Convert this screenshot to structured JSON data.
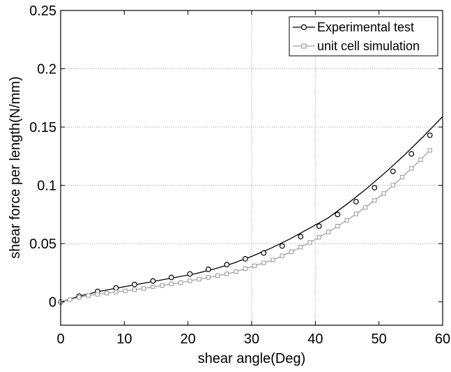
{
  "chart_data": {
    "type": "line",
    "xlabel": "shear angle(Deg)",
    "ylabel": "shear force per length(N/mm)",
    "xlim": [
      0,
      60
    ],
    "ylim": [
      -0.02,
      0.25
    ],
    "x_ticks": [
      "0",
      "10",
      "20",
      "30",
      "40",
      "50",
      "60"
    ],
    "y_ticks": [
      "0",
      "0.05",
      "0.1",
      "0.15",
      "0.2",
      "0.25"
    ],
    "grid": "dotted at x = 30, 40 and y = 0.05, 0.1, 0.15, 0.2",
    "legend_position": "top-right",
    "series": [
      {
        "name": "Experimental test",
        "color": "#000000",
        "marker": "circle",
        "line_x": [
          0,
          3,
          6,
          9,
          12,
          15,
          18,
          21,
          24,
          27,
          30,
          33,
          36,
          39,
          42,
          45,
          48,
          51,
          54,
          57,
          60
        ],
        "line_y": [
          0,
          0.005,
          0.009,
          0.012,
          0.015,
          0.018,
          0.021,
          0.024,
          0.028,
          0.033,
          0.039,
          0.046,
          0.054,
          0.063,
          0.072,
          0.084,
          0.097,
          0.111,
          0.126,
          0.142,
          0.159
        ],
        "markers_x": [
          0,
          2.9,
          5.8,
          8.7,
          11.6,
          14.5,
          17.4,
          20.3,
          23.2,
          26.1,
          29.0,
          31.9,
          34.8,
          37.7,
          40.6,
          43.5,
          46.4,
          49.3,
          52.2,
          55.1,
          58.0
        ],
        "markers_y": [
          0,
          0.005,
          0.009,
          0.012,
          0.015,
          0.018,
          0.021,
          0.024,
          0.028,
          0.032,
          0.037,
          0.042,
          0.048,
          0.056,
          0.065,
          0.075,
          0.086,
          0.098,
          0.112,
          0.127,
          0.143
        ]
      },
      {
        "name": "unit cell simulation",
        "color": "#a0a0a0",
        "marker": "square",
        "x": [
          0,
          1.45,
          2.9,
          4.35,
          5.8,
          7.25,
          8.7,
          10.15,
          11.6,
          13.05,
          14.5,
          15.95,
          17.4,
          18.85,
          20.3,
          21.75,
          23.2,
          24.65,
          26.1,
          27.55,
          29.0,
          30.45,
          31.9,
          33.35,
          34.8,
          36.25,
          37.7,
          39.15,
          40.6,
          42.05,
          43.5,
          44.95,
          46.4,
          47.85,
          49.3,
          50.75,
          52.2,
          53.65,
          55.1,
          56.55,
          58.0
        ],
        "y": [
          0,
          0.002,
          0.004,
          0.0055,
          0.0065,
          0.0075,
          0.0085,
          0.0095,
          0.0105,
          0.0115,
          0.013,
          0.014,
          0.0155,
          0.0165,
          0.018,
          0.0195,
          0.021,
          0.0225,
          0.024,
          0.026,
          0.0285,
          0.031,
          0.0335,
          0.036,
          0.0395,
          0.043,
          0.047,
          0.051,
          0.0555,
          0.06,
          0.065,
          0.07,
          0.0755,
          0.081,
          0.087,
          0.093,
          0.1,
          0.107,
          0.1145,
          0.122,
          0.13
        ]
      }
    ]
  }
}
